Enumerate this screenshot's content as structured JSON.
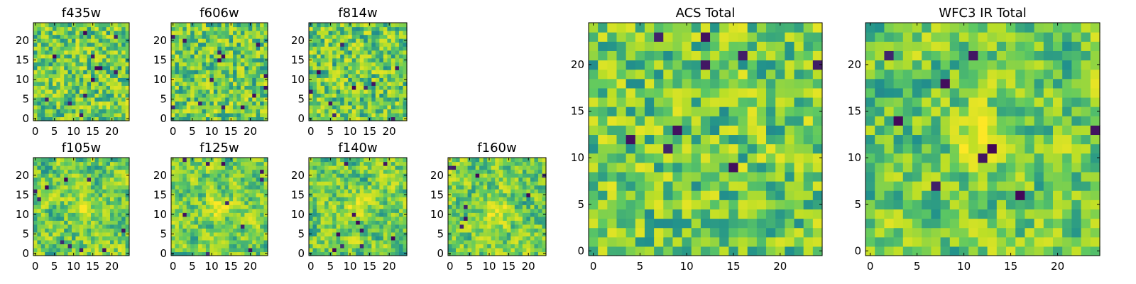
{
  "figure": {
    "colormap_stops": [
      "#440154",
      "#3b528b",
      "#21918c",
      "#5ec962",
      "#bddf26",
      "#fde725"
    ]
  },
  "chart_data": [
    {
      "type": "heatmap",
      "title": "f435w",
      "grid": [
        25,
        25
      ],
      "xlim": [
        0,
        24
      ],
      "ylim": [
        0,
        24
      ],
      "xticks": [
        "0",
        "5",
        "10",
        "15",
        "20"
      ],
      "yticks": [
        "0",
        "5",
        "10",
        "15",
        "20"
      ],
      "seed": 11,
      "smooth": 0,
      "peak": null,
      "dark_count": 12
    },
    {
      "type": "heatmap",
      "title": "f606w",
      "grid": [
        25,
        25
      ],
      "xlim": [
        0,
        24
      ],
      "ylim": [
        0,
        24
      ],
      "xticks": [
        "0",
        "5",
        "10",
        "15",
        "20"
      ],
      "yticks": [
        "0",
        "5",
        "10",
        "15",
        "20"
      ],
      "seed": 23,
      "smooth": 0,
      "peak": null,
      "dark_count": 14
    },
    {
      "type": "heatmap",
      "title": "f814w",
      "grid": [
        25,
        25
      ],
      "xlim": [
        0,
        24
      ],
      "ylim": [
        0,
        24
      ],
      "xticks": [
        "0",
        "5",
        "10",
        "15",
        "20"
      ],
      "yticks": [
        "0",
        "5",
        "10",
        "15",
        "20"
      ],
      "seed": 37,
      "smooth": 0,
      "peak": null,
      "dark_count": 10
    },
    {
      "type": "heatmap",
      "title": "f105w",
      "grid": [
        25,
        25
      ],
      "xlim": [
        0,
        24
      ],
      "ylim": [
        0,
        24
      ],
      "xticks": [
        "0",
        "5",
        "10",
        "15",
        "20"
      ],
      "yticks": [
        "0",
        "5",
        "10",
        "15",
        "20"
      ],
      "seed": 41,
      "smooth": 1,
      "peak": [
        12,
        12
      ],
      "dark_count": 10
    },
    {
      "type": "heatmap",
      "title": "f125w",
      "grid": [
        25,
        25
      ],
      "xlim": [
        0,
        24
      ],
      "ylim": [
        0,
        24
      ],
      "xticks": [
        "0",
        "5",
        "10",
        "15",
        "20"
      ],
      "yticks": [
        "0",
        "5",
        "10",
        "15",
        "20"
      ],
      "seed": 53,
      "smooth": 1,
      "peak": [
        12,
        12
      ],
      "dark_count": 10
    },
    {
      "type": "heatmap",
      "title": "f140w",
      "grid": [
        25,
        25
      ],
      "xlim": [
        0,
        24
      ],
      "ylim": [
        0,
        24
      ],
      "xticks": [
        "0",
        "5",
        "10",
        "15",
        "20"
      ],
      "yticks": [
        "0",
        "5",
        "10",
        "15",
        "20"
      ],
      "seed": 67,
      "smooth": 1,
      "peak": [
        12,
        12
      ],
      "dark_count": 10
    },
    {
      "type": "heatmap",
      "title": "f160w",
      "grid": [
        25,
        25
      ],
      "xlim": [
        0,
        24
      ],
      "ylim": [
        0,
        24
      ],
      "xticks": [
        "0",
        "5",
        "10",
        "15",
        "20"
      ],
      "yticks": [
        "0",
        "5",
        "10",
        "15",
        "20"
      ],
      "seed": 79,
      "smooth": 1,
      "peak": [
        12,
        11
      ],
      "dark_count": 8
    },
    {
      "type": "heatmap",
      "title": "ACS Total",
      "grid": [
        25,
        25
      ],
      "xlim": [
        0,
        24
      ],
      "ylim": [
        0,
        24
      ],
      "xticks": [
        "0",
        "5",
        "10",
        "15",
        "20"
      ],
      "yticks": [
        "0",
        "5",
        "10",
        "15",
        "20"
      ],
      "seed": 97,
      "smooth": 0,
      "peak": null,
      "dark_count": 9
    },
    {
      "type": "heatmap",
      "title": "WFC3 IR Total",
      "grid": [
        25,
        25
      ],
      "xlim": [
        0,
        24
      ],
      "ylim": [
        0,
        24
      ],
      "xticks": [
        "0",
        "5",
        "10",
        "15",
        "20"
      ],
      "yticks": [
        "0",
        "5",
        "10",
        "15",
        "20"
      ],
      "seed": 113,
      "smooth": 1,
      "peak": [
        12,
        12
      ],
      "dark_count": 9
    }
  ]
}
